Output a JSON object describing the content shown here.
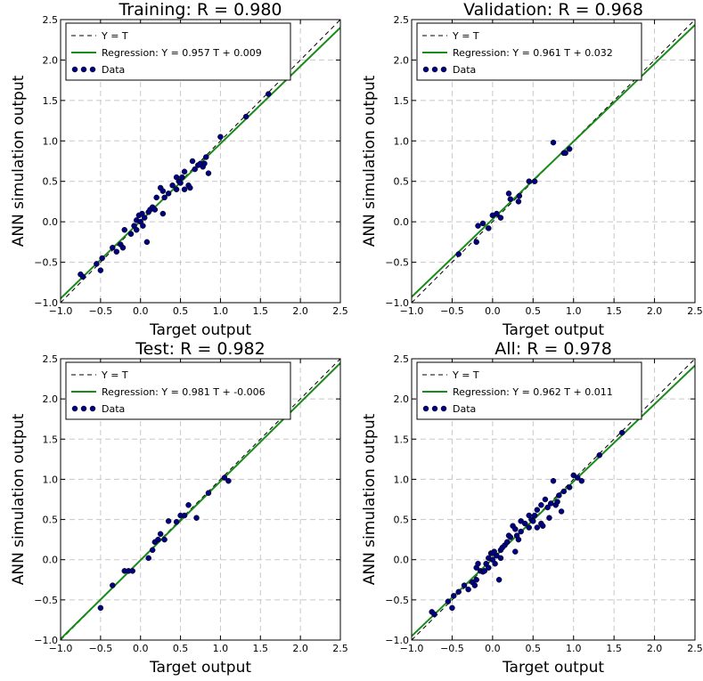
{
  "chart_data": [
    {
      "type": "scatter",
      "title": "Training: R = 0.980",
      "xlabel": "Target output",
      "ylabel": "ANN simulation output",
      "xlim": [
        -1.0,
        2.5
      ],
      "ylim": [
        -1.0,
        2.5
      ],
      "xticks": [
        "−1.0",
        "−0.5",
        "0.0",
        "0.5",
        "1.0",
        "1.5",
        "2.0",
        "2.5"
      ],
      "yticks": [
        "−1.0",
        "−0.5",
        "0.0",
        "0.5",
        "1.0",
        "1.5",
        "2.0",
        "2.5"
      ],
      "grid": true,
      "legend_position": "top-left",
      "identity_label": "Y = T",
      "regression": {
        "label": "Regression: Y = 0.957 T + 0.009",
        "slope": 0.957,
        "intercept": 0.009
      },
      "data_label": "Data",
      "points": [
        [
          -0.75,
          -0.65
        ],
        [
          -0.72,
          -0.68
        ],
        [
          -0.55,
          -0.52
        ],
        [
          -0.5,
          -0.6
        ],
        [
          -0.48,
          -0.45
        ],
        [
          -0.35,
          -0.32
        ],
        [
          -0.3,
          -0.37
        ],
        [
          -0.25,
          -0.28
        ],
        [
          -0.22,
          -0.32
        ],
        [
          -0.2,
          -0.1
        ],
        [
          -0.12,
          -0.15
        ],
        [
          -0.08,
          -0.05
        ],
        [
          -0.05,
          0.02
        ],
        [
          -0.05,
          -0.1
        ],
        [
          -0.02,
          0.08
        ],
        [
          0.0,
          0.0
        ],
        [
          0.02,
          0.1
        ],
        [
          0.03,
          -0.05
        ],
        [
          0.05,
          0.05
        ],
        [
          0.08,
          -0.25
        ],
        [
          0.1,
          0.12
        ],
        [
          0.12,
          0.15
        ],
        [
          0.15,
          0.18
        ],
        [
          0.18,
          0.15
        ],
        [
          0.2,
          0.3
        ],
        [
          0.25,
          0.42
        ],
        [
          0.28,
          0.38
        ],
        [
          0.28,
          0.1
        ],
        [
          0.3,
          0.3
        ],
        [
          0.35,
          0.35
        ],
        [
          0.4,
          0.45
        ],
        [
          0.45,
          0.55
        ],
        [
          0.45,
          0.4
        ],
        [
          0.48,
          0.5
        ],
        [
          0.5,
          0.48
        ],
        [
          0.52,
          0.55
        ],
        [
          0.55,
          0.62
        ],
        [
          0.55,
          0.4
        ],
        [
          0.6,
          0.45
        ],
        [
          0.62,
          0.42
        ],
        [
          0.65,
          0.75
        ],
        [
          0.68,
          0.65
        ],
        [
          0.72,
          0.7
        ],
        [
          0.75,
          0.72
        ],
        [
          0.78,
          0.68
        ],
        [
          0.8,
          0.72
        ],
        [
          0.82,
          0.8
        ],
        [
          0.85,
          0.6
        ],
        [
          1.0,
          1.05
        ],
        [
          1.32,
          1.3
        ],
        [
          1.6,
          1.58
        ]
      ]
    },
    {
      "type": "scatter",
      "title": "Validation: R = 0.968",
      "xlabel": "Target output",
      "ylabel": "ANN simulation output",
      "xlim": [
        -1.0,
        2.5
      ],
      "ylim": [
        -1.0,
        2.5
      ],
      "xticks": [
        "−1.0",
        "−0.5",
        "0.0",
        "0.5",
        "1.0",
        "1.5",
        "2.0",
        "2.5"
      ],
      "yticks": [
        "−1.0",
        "−0.5",
        "0.0",
        "0.5",
        "1.0",
        "1.5",
        "2.0",
        "2.5"
      ],
      "grid": true,
      "legend_position": "top-left",
      "identity_label": "Y = T",
      "regression": {
        "label": "Regression: Y = 0.961 T + 0.032",
        "slope": 0.961,
        "intercept": 0.032
      },
      "data_label": "Data",
      "points": [
        [
          -0.42,
          -0.4
        ],
        [
          -0.2,
          -0.25
        ],
        [
          -0.18,
          -0.05
        ],
        [
          -0.12,
          -0.02
        ],
        [
          -0.05,
          -0.08
        ],
        [
          0.0,
          0.08
        ],
        [
          0.05,
          0.1
        ],
        [
          0.1,
          0.05
        ],
        [
          0.2,
          0.35
        ],
        [
          0.22,
          0.28
        ],
        [
          0.32,
          0.25
        ],
        [
          0.33,
          0.32
        ],
        [
          0.45,
          0.5
        ],
        [
          0.52,
          0.5
        ],
        [
          0.75,
          0.98
        ],
        [
          0.88,
          0.85
        ],
        [
          0.9,
          0.85
        ],
        [
          0.95,
          0.9
        ]
      ]
    },
    {
      "type": "scatter",
      "title": "Test: R = 0.982",
      "xlabel": "Target output",
      "ylabel": "ANN simulation output",
      "xlim": [
        -1.0,
        2.5
      ],
      "ylim": [
        -1.0,
        2.5
      ],
      "xticks": [
        "−1.0",
        "−0.5",
        "0.0",
        "0.5",
        "1.0",
        "1.5",
        "2.0",
        "2.5"
      ],
      "yticks": [
        "−1.0",
        "−0.5",
        "0.0",
        "0.5",
        "1.0",
        "1.5",
        "2.0",
        "2.5"
      ],
      "grid": true,
      "legend_position": "top-left",
      "identity_label": "Y = T",
      "regression": {
        "label": "Regression: Y = 0.981 T + -0.006",
        "slope": 0.981,
        "intercept": -0.006
      },
      "data_label": "Data",
      "points": [
        [
          -0.5,
          -0.6
        ],
        [
          -0.35,
          -0.32
        ],
        [
          -0.2,
          -0.14
        ],
        [
          -0.15,
          -0.14
        ],
        [
          -0.1,
          -0.14
        ],
        [
          0.1,
          0.02
        ],
        [
          0.15,
          0.12
        ],
        [
          0.18,
          0.22
        ],
        [
          0.22,
          0.25
        ],
        [
          0.25,
          0.32
        ],
        [
          0.3,
          0.25
        ],
        [
          0.35,
          0.48
        ],
        [
          0.45,
          0.47
        ],
        [
          0.5,
          0.55
        ],
        [
          0.55,
          0.55
        ],
        [
          0.6,
          0.68
        ],
        [
          0.7,
          0.52
        ],
        [
          0.85,
          0.83
        ],
        [
          1.05,
          1.02
        ],
        [
          1.1,
          0.98
        ]
      ]
    },
    {
      "type": "scatter",
      "title": "All: R = 0.978",
      "xlabel": "Target output",
      "ylabel": "ANN simulation output",
      "xlim": [
        -1.0,
        2.5
      ],
      "ylim": [
        -1.0,
        2.5
      ],
      "xticks": [
        "−1.0",
        "−0.5",
        "0.0",
        "0.5",
        "1.0",
        "1.5",
        "2.0",
        "2.5"
      ],
      "yticks": [
        "−1.0",
        "−0.5",
        "0.0",
        "0.5",
        "1.0",
        "1.5",
        "2.0",
        "2.5"
      ],
      "grid": true,
      "legend_position": "top-left",
      "identity_label": "Y = T",
      "regression": {
        "label": "Regression: Y = 0.962 T + 0.011",
        "slope": 0.962,
        "intercept": 0.011
      },
      "data_label": "Data",
      "points": [
        [
          -0.75,
          -0.65
        ],
        [
          -0.72,
          -0.68
        ],
        [
          -0.55,
          -0.52
        ],
        [
          -0.5,
          -0.6
        ],
        [
          -0.48,
          -0.45
        ],
        [
          -0.42,
          -0.4
        ],
        [
          -0.35,
          -0.32
        ],
        [
          -0.3,
          -0.37
        ],
        [
          -0.25,
          -0.28
        ],
        [
          -0.22,
          -0.32
        ],
        [
          -0.2,
          -0.1
        ],
        [
          -0.2,
          -0.25
        ],
        [
          -0.18,
          -0.05
        ],
        [
          -0.15,
          -0.14
        ],
        [
          -0.12,
          -0.15
        ],
        [
          -0.1,
          -0.14
        ],
        [
          -0.08,
          -0.05
        ],
        [
          -0.05,
          0.02
        ],
        [
          -0.05,
          -0.1
        ],
        [
          -0.02,
          0.08
        ],
        [
          0.0,
          0.0
        ],
        [
          0.0,
          0.08
        ],
        [
          0.02,
          0.1
        ],
        [
          0.03,
          -0.05
        ],
        [
          0.05,
          0.05
        ],
        [
          0.08,
          -0.25
        ],
        [
          0.1,
          0.12
        ],
        [
          0.1,
          0.02
        ],
        [
          0.12,
          0.15
        ],
        [
          0.15,
          0.18
        ],
        [
          0.18,
          0.22
        ],
        [
          0.2,
          0.3
        ],
        [
          0.22,
          0.28
        ],
        [
          0.25,
          0.42
        ],
        [
          0.28,
          0.38
        ],
        [
          0.28,
          0.1
        ],
        [
          0.3,
          0.3
        ],
        [
          0.32,
          0.25
        ],
        [
          0.35,
          0.35
        ],
        [
          0.35,
          0.48
        ],
        [
          0.4,
          0.45
        ],
        [
          0.45,
          0.55
        ],
        [
          0.45,
          0.4
        ],
        [
          0.48,
          0.5
        ],
        [
          0.5,
          0.48
        ],
        [
          0.52,
          0.55
        ],
        [
          0.55,
          0.62
        ],
        [
          0.55,
          0.4
        ],
        [
          0.6,
          0.45
        ],
        [
          0.6,
          0.68
        ],
        [
          0.62,
          0.42
        ],
        [
          0.65,
          0.75
        ],
        [
          0.68,
          0.65
        ],
        [
          0.7,
          0.52
        ],
        [
          0.72,
          0.7
        ],
        [
          0.75,
          0.98
        ],
        [
          0.78,
          0.68
        ],
        [
          0.8,
          0.72
        ],
        [
          0.82,
          0.8
        ],
        [
          0.85,
          0.6
        ],
        [
          0.88,
          0.85
        ],
        [
          0.95,
          0.9
        ],
        [
          1.0,
          1.05
        ],
        [
          1.05,
          1.02
        ],
        [
          1.1,
          0.98
        ],
        [
          1.32,
          1.3
        ],
        [
          1.6,
          1.58
        ]
      ]
    }
  ],
  "colors": {
    "identity_line": "#000000",
    "regression_line": "#1a8a1a",
    "data_marker": "#000080",
    "grid": "#c8c8c8"
  }
}
